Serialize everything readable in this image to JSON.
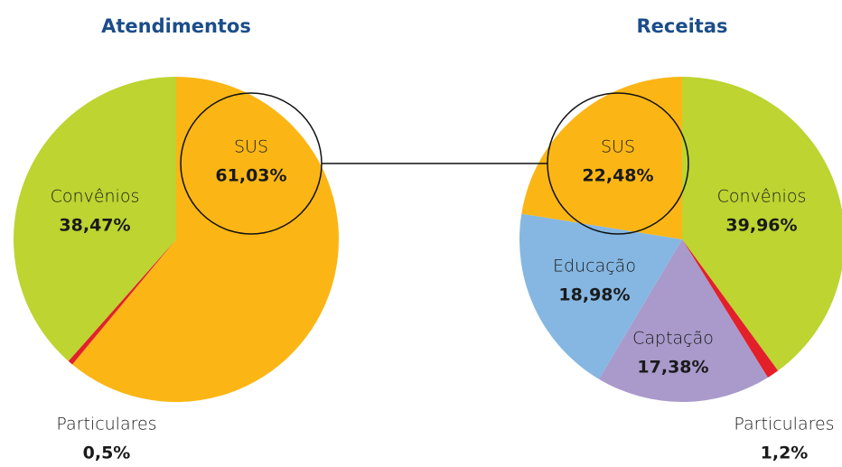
{
  "chart_data": [
    {
      "type": "pie",
      "title": "Atendimentos",
      "categories": [
        "SUS",
        "Particulares",
        "Convênios"
      ],
      "values": [
        61.03,
        0.5,
        38.47
      ],
      "value_labels": [
        "61,03%",
        "0,5%",
        "38,47%"
      ],
      "colors": [
        "#fbb615",
        "#e3202a",
        "#bdd431"
      ]
    },
    {
      "type": "pie",
      "title": "Receitas",
      "categories": [
        "Convênios",
        "Particulares",
        "Captação",
        "Educação",
        "SUS"
      ],
      "values": [
        39.96,
        1.2,
        17.38,
        18.98,
        22.48
      ],
      "value_labels": [
        "39,96%",
        "1,2%",
        "17,38%",
        "18,98%",
        "22,48%"
      ],
      "colors": [
        "#bdd431",
        "#e3202a",
        "#a99acb",
        "#85b7e2",
        "#fbb615"
      ]
    }
  ]
}
